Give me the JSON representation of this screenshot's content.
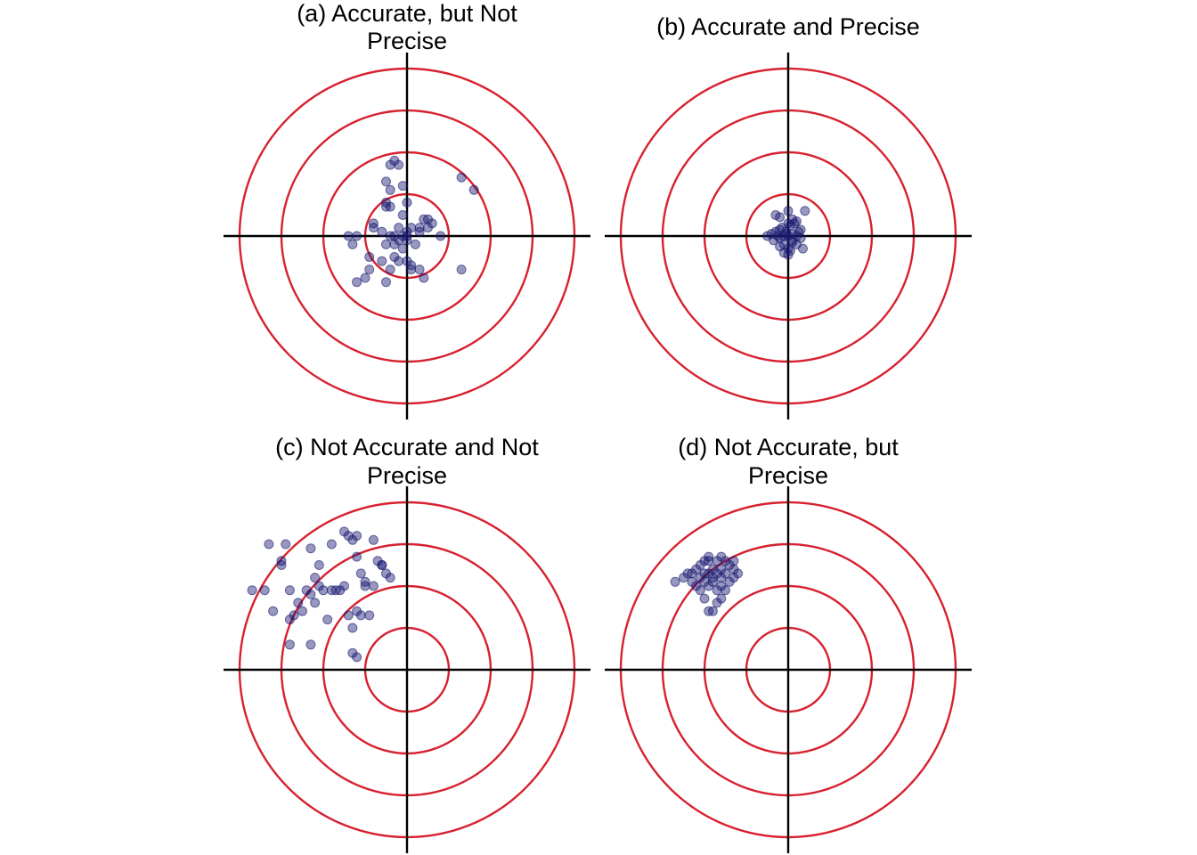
{
  "colors": {
    "ring": "#d7212f",
    "axis": "#000000",
    "point": "#191970"
  },
  "chart_data": [
    {
      "type": "scatter",
      "title": [
        "(a) Accurate, but Not",
        "Precise"
      ],
      "rings": [
        1,
        2,
        3,
        4
      ],
      "xlim": [
        -4.4,
        4.4
      ],
      "ylim": [
        -4.4,
        4.4
      ],
      "grid": false,
      "x": [
        -1.4,
        -1.3,
        -1.2,
        -1.0,
        -0.9,
        -0.8,
        -0.6,
        -0.5,
        -0.5,
        -0.4,
        -0.4,
        -0.3,
        -0.3,
        -0.2,
        -0.2,
        -0.2,
        -0.1,
        0.0,
        0.0,
        0.1,
        0.1,
        0.2,
        0.3,
        0.4,
        0.5,
        0.6,
        0.8,
        -0.6,
        -0.5,
        -0.4,
        -0.2,
        0.0,
        -0.1,
        0.0,
        0.3,
        0.5,
        -0.8,
        -0.4,
        -0.3,
        0.1,
        0.3,
        -0.1,
        -1.2,
        -0.9,
        -0.5,
        -0.5,
        1.3,
        1.6,
        1.3,
        -0.3,
        -0.4,
        0.4,
        0.0,
        -0.1
      ],
      "y": [
        0.0,
        -0.2,
        0.0,
        -1.0,
        -0.8,
        0.2,
        -0.6,
        -0.2,
        -1.1,
        -0.8,
        0.0,
        -0.5,
        -0.2,
        0.2,
        -0.6,
        -0.1,
        -0.3,
        -0.6,
        0.0,
        -0.7,
        0.2,
        -0.2,
        0.1,
        -1.0,
        0.2,
        0.3,
        0.0,
        0.1,
        0.7,
        1.1,
        1.7,
        0.8,
        1.2,
        0.1,
        -0.8,
        0.4,
        0.3,
        0.7,
        1.8,
        -0.8,
        0.2,
        0.5,
        -1.1,
        -0.5,
        0.8,
        1.3,
        1.4,
        1.1,
        -0.8,
        0.0,
        1.7,
        0.4,
        -0.1,
        0.0
      ]
    },
    {
      "type": "scatter",
      "title": [
        "(b) Accurate and Precise"
      ],
      "rings": [
        1,
        2,
        3,
        4
      ],
      "xlim": [
        -4.4,
        4.4
      ],
      "ylim": [
        -4.4,
        4.4
      ],
      "grid": false,
      "x": [
        -0.5,
        -0.4,
        -0.35,
        -0.3,
        -0.25,
        -0.2,
        -0.2,
        -0.15,
        -0.1,
        -0.1,
        -0.05,
        0.0,
        0.0,
        0.05,
        0.1,
        0.1,
        0.15,
        0.2,
        0.2,
        0.25,
        0.3,
        0.35,
        -0.3,
        -0.2,
        0.0,
        0.1,
        0.2,
        0.4,
        -0.1,
        0.0,
        0.05,
        0.1,
        -0.2,
        0.0,
        0.3,
        -0.05
      ],
      "y": [
        0.0,
        0.05,
        -0.1,
        0.1,
        0.0,
        0.15,
        -0.05,
        0.2,
        0.0,
        -0.2,
        0.1,
        0.0,
        -0.3,
        0.25,
        0.05,
        -0.1,
        0.3,
        0.0,
        -0.2,
        0.1,
        -0.05,
        -0.3,
        0.5,
        0.45,
        0.6,
        0.4,
        0.35,
        0.6,
        -0.4,
        -0.45,
        -0.35,
        -0.15,
        -0.25,
        0.3,
        0.15,
        0.05
      ]
    },
    {
      "type": "scatter",
      "title": [
        "(c) Not Accurate and Not",
        "Precise"
      ],
      "rings": [
        1,
        2,
        3,
        4
      ],
      "xlim": [
        -4.4,
        4.4
      ],
      "ylim": [
        -4.4,
        4.4
      ],
      "grid": false,
      "x": [
        -3.7,
        -3.4,
        -3.2,
        -3.0,
        -3.0,
        -2.8,
        -2.8,
        -2.7,
        -2.5,
        -2.4,
        -2.3,
        -2.2,
        -2.2,
        -2.1,
        -2.0,
        -1.9,
        -1.8,
        -1.7,
        -1.6,
        -1.5,
        -1.4,
        -1.3,
        -1.2,
        -1.1,
        -1.0,
        -0.9,
        -0.8,
        -0.7,
        -0.6,
        -0.5,
        -0.4,
        -3.3,
        -2.9,
        -2.3,
        -2.1,
        -1.8,
        -1.5,
        -1.4,
        -1.3,
        -1.2,
        -1.2,
        -1.1,
        -1.0,
        -0.8,
        -0.6,
        -2.8,
        -2.3,
        -1.2,
        -1.3,
        -2.6
      ],
      "y": [
        1.9,
        1.9,
        1.4,
        2.6,
        2.5,
        1.2,
        1.9,
        1.3,
        1.4,
        1.9,
        1.8,
        2.2,
        1.6,
        2.0,
        1.9,
        1.2,
        1.9,
        1.9,
        1.9,
        2.0,
        1.3,
        1.0,
        1.4,
        2.3,
        2.0,
        1.3,
        2.0,
        2.6,
        2.5,
        2.3,
        2.2,
        3.0,
        3.0,
        2.9,
        2.5,
        3.0,
        3.3,
        3.2,
        3.1,
        3.2,
        2.7,
        1.3,
        2.1,
        3.1,
        2.5,
        0.6,
        0.6,
        0.3,
        0.4,
        1.6
      ]
    },
    {
      "type": "scatter",
      "title": [
        "(d) Not Accurate, but",
        "Precise"
      ],
      "rings": [
        1,
        2,
        3,
        4
      ],
      "xlim": [
        -4.4,
        4.4
      ],
      "ylim": [
        -4.4,
        4.4
      ],
      "grid": false,
      "x": [
        -2.7,
        -2.5,
        -2.4,
        -2.3,
        -2.2,
        -2.2,
        -2.1,
        -2.1,
        -2.0,
        -2.0,
        -2.0,
        -1.9,
        -1.9,
        -1.9,
        -1.8,
        -1.8,
        -1.8,
        -1.7,
        -1.7,
        -1.7,
        -1.6,
        -1.6,
        -1.6,
        -1.5,
        -1.5,
        -1.4,
        -1.3,
        -1.2,
        -1.3,
        -1.4,
        -1.5,
        -1.6,
        -1.9,
        -2.0,
        -2.1,
        -1.9,
        -1.8,
        -1.7,
        -2.3,
        -1.6,
        -1.3
      ],
      "y": [
        2.1,
        2.2,
        2.3,
        2.1,
        2.4,
        2.0,
        2.2,
        2.5,
        2.1,
        2.3,
        2.6,
        2.0,
        2.3,
        2.6,
        2.1,
        2.4,
        2.2,
        1.9,
        2.3,
        2.6,
        2.0,
        2.4,
        2.2,
        1.9,
        2.3,
        2.1,
        2.4,
        2.3,
        2.6,
        2.5,
        2.6,
        2.7,
        2.7,
        1.7,
        1.9,
        1.4,
        1.4,
        1.6,
        2.3,
        1.7,
        2.2
      ]
    }
  ]
}
